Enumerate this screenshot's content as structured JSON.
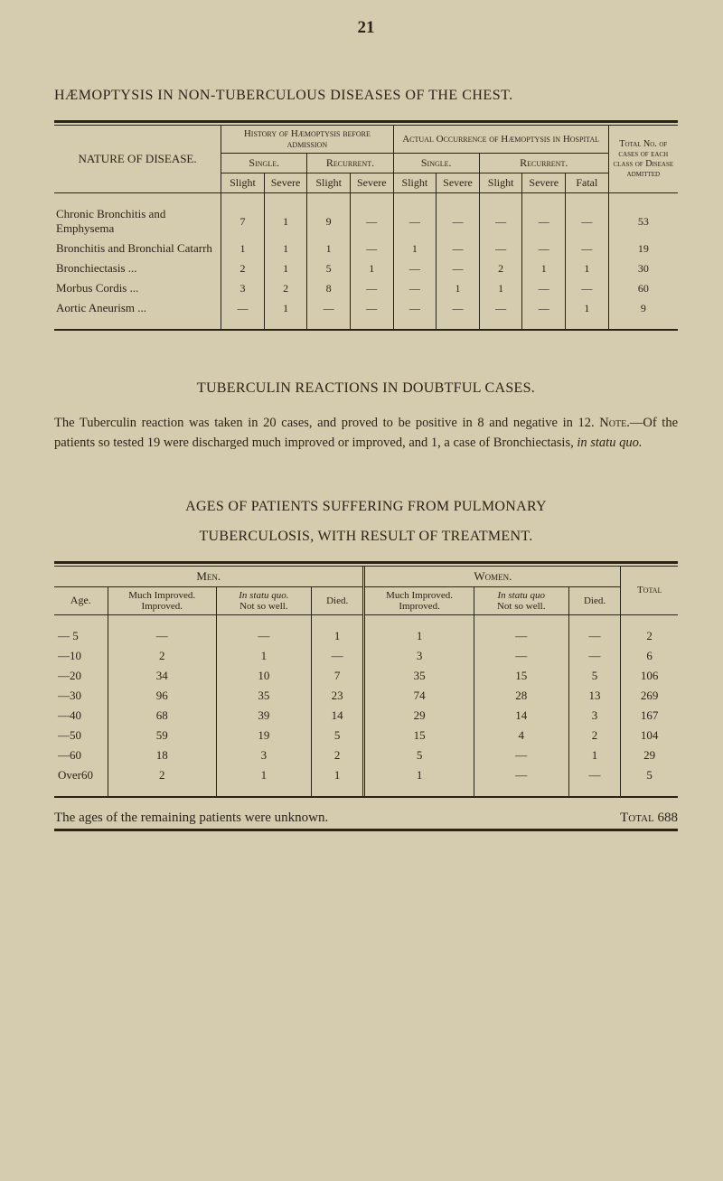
{
  "pageNumber": "21",
  "title1": "HÆMOPTYSIS IN NON-TUBERCULOUS DISEASES OF THE CHEST.",
  "t1": {
    "colGroupLeft": "History of Hæmoptysis before admission",
    "colGroupRight": "Actual Occurrence of Hæmoptysis in Hospital",
    "natureHeader": "NATURE OF DISEASE.",
    "singleHeader": "Single.",
    "recurrentHeader": "Recurrent.",
    "slight": "Slight",
    "severe": "Severe",
    "fatal": "Fatal",
    "totalHeader": "Total No. of cases of each class of Disease admitted",
    "rows": [
      {
        "name": "Chronic Bronchitis and Emphysema",
        "c": [
          "7",
          "1",
          "9",
          "—",
          "—",
          "—",
          "—",
          "—",
          "—",
          "53"
        ]
      },
      {
        "name": "Bronchitis and Bronchial Catarrh",
        "c": [
          "1",
          "1",
          "1",
          "—",
          "1",
          "—",
          "—",
          "—",
          "—",
          "19"
        ]
      },
      {
        "name": "Bronchiectasis    ...",
        "c": [
          "2",
          "1",
          "5",
          "1",
          "—",
          "—",
          "2",
          "1",
          "1",
          "30"
        ]
      },
      {
        "name": "Morbus Cordis    ...",
        "c": [
          "3",
          "2",
          "8",
          "—",
          "—",
          "1",
          "1",
          "—",
          "—",
          "60"
        ]
      },
      {
        "name": "Aortic Aneurism ...",
        "c": [
          "—",
          "1",
          "—",
          "—",
          "—",
          "—",
          "—",
          "—",
          "1",
          "9"
        ]
      }
    ]
  },
  "section2Heading": "TUBERCULIN REACTIONS IN DOUBTFUL CASES.",
  "paraLead": "The Tuberculin reaction was taken in 20 cases, and proved to be positive in 8 and negative in 12.  ",
  "paraNote": "Note",
  "paraAfterNote": ".—Of the patients so tested 19 were discharged much improved or improved, and 1, a case of Bronchiectasis, ",
  "paraItalic": "in statu quo.",
  "sect3TitleA": "AGES OF PATIENTS SUFFERING FROM PULMONARY",
  "sect3TitleB": "TUBERCULOSIS, WITH RESULT OF TREATMENT.",
  "t2": {
    "menHeader": "Men.",
    "womenHeader": "Women.",
    "ageHeader": "Age.",
    "muchImproved": "Much Improved. Improved.",
    "inStatu": "In statu quo.",
    "notSoWell": "Not so well.",
    "died": "Died.",
    "inStatu2": "In statu quo",
    "total": "Total",
    "rows": [
      [
        "— 5",
        "—",
        "—",
        "1",
        "1",
        "—",
        "—",
        "2"
      ],
      [
        "—10",
        "2",
        "1",
        "—",
        "3",
        "—",
        "—",
        "6"
      ],
      [
        "—20",
        "34",
        "10",
        "7",
        "35",
        "15",
        "5",
        "106"
      ],
      [
        "—30",
        "96",
        "35",
        "23",
        "74",
        "28",
        "13",
        "269"
      ],
      [
        "—40",
        "68",
        "39",
        "14",
        "29",
        "14",
        "3",
        "167"
      ],
      [
        "—50",
        "59",
        "19",
        "5",
        "15",
        "4",
        "2",
        "104"
      ],
      [
        "—60",
        "18",
        "3",
        "2",
        "5",
        "—",
        "1",
        "29"
      ],
      [
        "Over60",
        "2",
        "1",
        "1",
        "1",
        "—",
        "—",
        "5"
      ]
    ]
  },
  "footLeft": "The ages of the remaining patients were unknown.",
  "footRight": "Total 688"
}
